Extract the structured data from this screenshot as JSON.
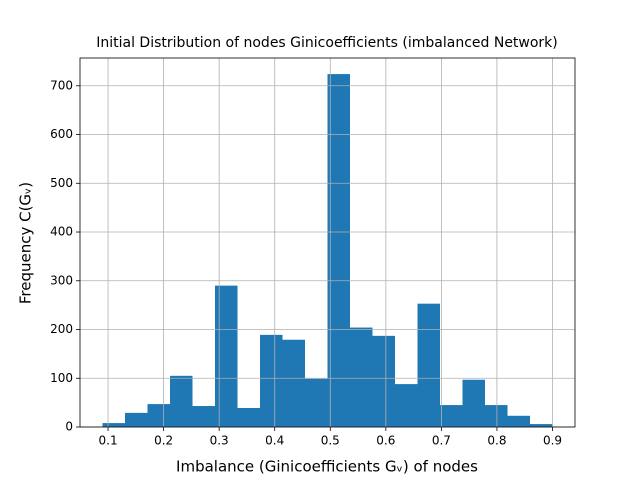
{
  "chart_data": {
    "type": "histogram",
    "title": "Initial Distribution of nodes Ginicoefficients (imbalanced Network)",
    "x_label": "Imbalance (Ginicoefficients Gᵥ) of nodes",
    "y_label": "Frequency C(Gᵥ)",
    "bins": [
      0.09,
      0.1305,
      0.171,
      0.2115,
      0.252,
      0.2925,
      0.333,
      0.3735,
      0.414,
      0.4545,
      0.495,
      0.5355,
      0.576,
      0.6165,
      0.657,
      0.6975,
      0.738,
      0.7785,
      0.819,
      0.8595,
      0.9
    ],
    "counts": [
      8,
      29,
      47,
      105,
      43,
      290,
      39,
      189,
      179,
      99,
      724,
      204,
      187,
      88,
      253,
      45,
      97,
      45,
      23,
      6
    ],
    "color": "#1f77b4",
    "xlim": [
      0.0495,
      0.9405
    ],
    "ylim": [
      0,
      757
    ],
    "xticks": [
      0.1,
      0.2,
      0.3,
      0.4,
      0.5,
      0.6,
      0.7,
      0.8,
      0.9
    ],
    "yticks": [
      0,
      100,
      200,
      300,
      400,
      500,
      600,
      700
    ],
    "grid": true
  }
}
